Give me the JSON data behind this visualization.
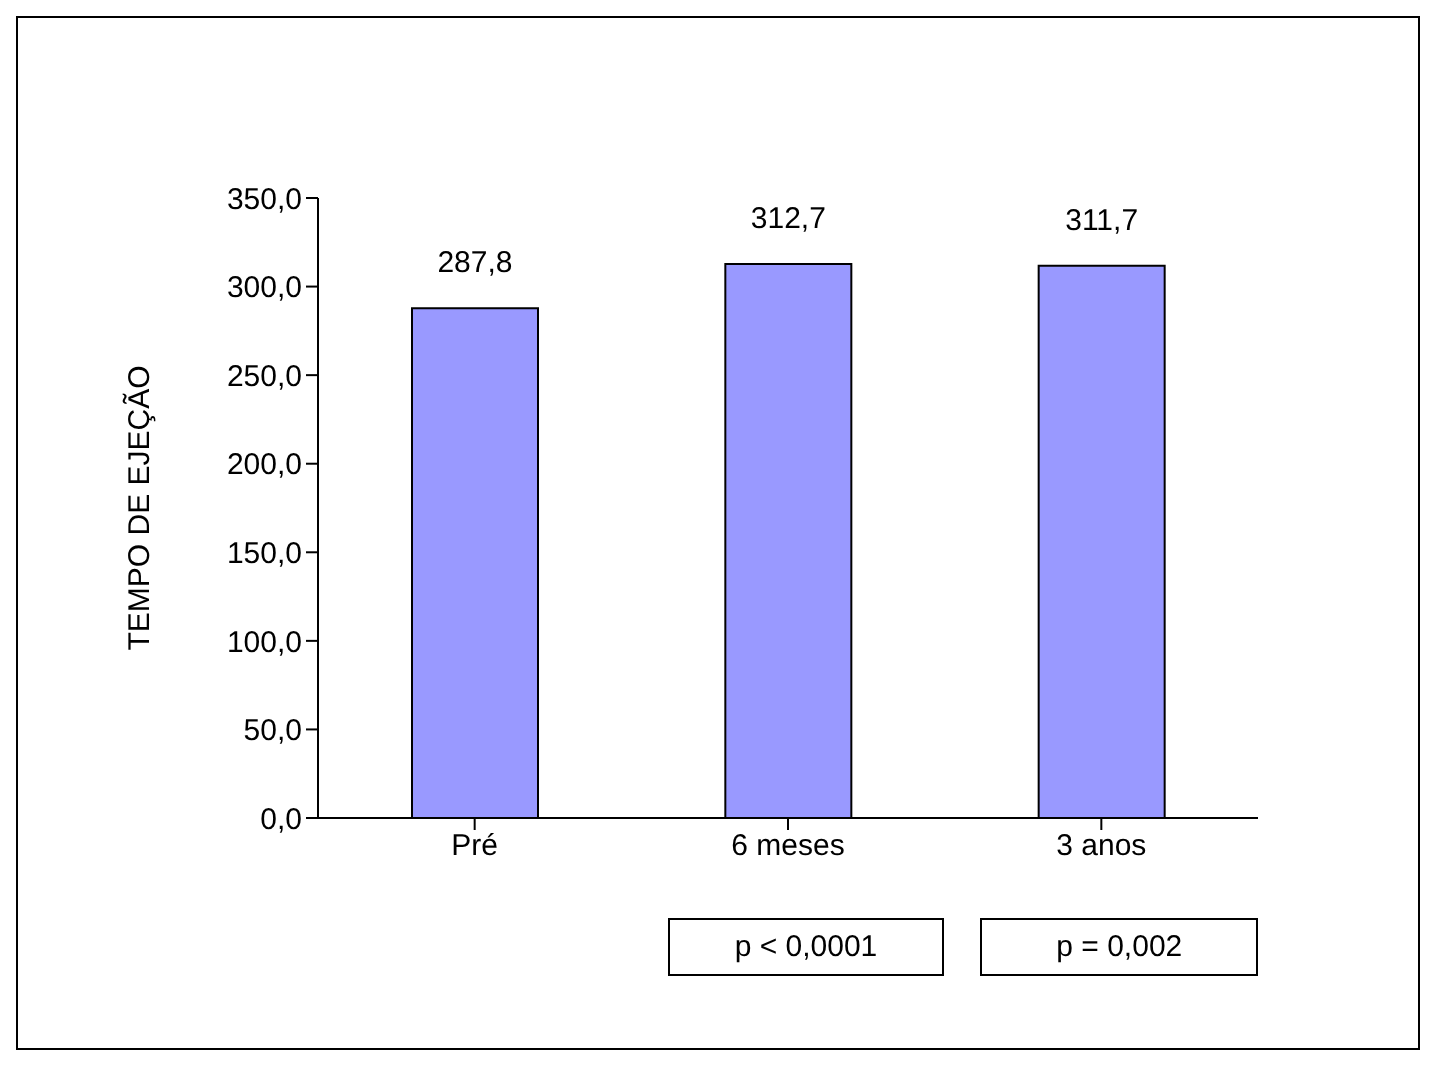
{
  "chart_data": {
    "type": "bar",
    "ylabel": "TEMPO DE EJEÇÃO",
    "categories": [
      "Pré",
      "6 meses",
      "3 anos"
    ],
    "values": [
      287.8,
      312.7,
      311.7
    ],
    "value_labels": [
      "287,8",
      "312,7",
      "311,7"
    ],
    "color": "#9999ff",
    "ylim": [
      0,
      350
    ],
    "yticks": [
      {
        "value": 0,
        "label": "0,0"
      },
      {
        "value": 50,
        "label": "50,0"
      },
      {
        "value": 100,
        "label": "100,0"
      },
      {
        "value": 150,
        "label": "150,0"
      },
      {
        "value": 200,
        "label": "200,0"
      },
      {
        "value": 250,
        "label": "250,0"
      },
      {
        "value": 300,
        "label": "300,0"
      },
      {
        "value": 350,
        "label": "350,0"
      }
    ],
    "annotations": [
      "p < 0,0001",
      "p = 0,002"
    ],
    "grid": false,
    "legend": false
  }
}
